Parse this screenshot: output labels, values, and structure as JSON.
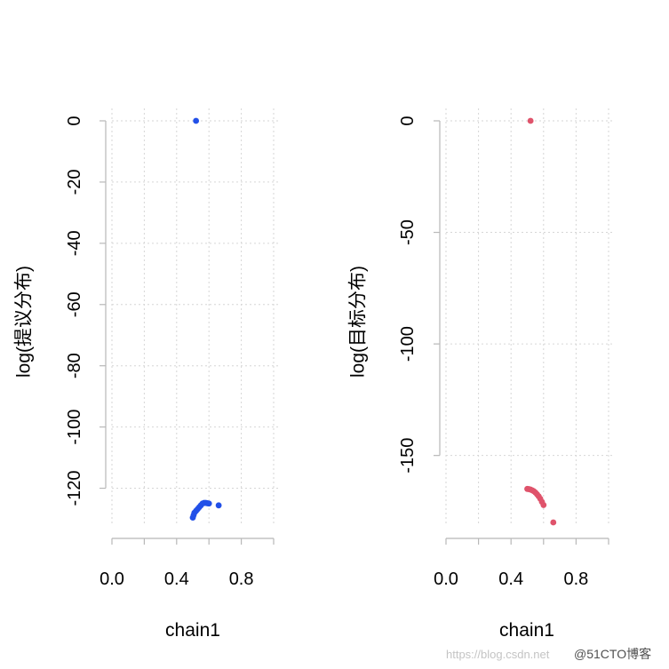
{
  "chart_data": [
    {
      "type": "scatter",
      "xlabel": "chain1",
      "ylabel": "log(提议分布)",
      "xlim": [
        0.0,
        1.0
      ],
      "ylim": [
        -130,
        0
      ],
      "xticks": [
        0.0,
        0.2,
        0.4,
        0.6,
        0.8,
        1.0
      ],
      "xtick_labels": [
        "0.0",
        "0.4",
        "0.8"
      ],
      "xtick_label_values": [
        0.0,
        0.4,
        0.8
      ],
      "yticks": [
        0,
        -20,
        -40,
        -60,
        -80,
        -100,
        -120
      ],
      "ytick_labels": [
        "0",
        "-20",
        "-40",
        "-60",
        "-80",
        "-100",
        "-120"
      ],
      "grid": true,
      "color": "#2250e8",
      "points": [
        {
          "x": 0.52,
          "y": 0
        },
        {
          "x": 0.5,
          "y": -129.6
        },
        {
          "x": 0.505,
          "y": -128.8
        },
        {
          "x": 0.51,
          "y": -128.0
        },
        {
          "x": 0.52,
          "y": -127.4
        },
        {
          "x": 0.53,
          "y": -126.8
        },
        {
          "x": 0.54,
          "y": -126.2
        },
        {
          "x": 0.55,
          "y": -125.6
        },
        {
          "x": 0.56,
          "y": -125.0
        },
        {
          "x": 0.57,
          "y": -124.8
        },
        {
          "x": 0.58,
          "y": -124.8
        },
        {
          "x": 0.59,
          "y": -124.9
        },
        {
          "x": 0.6,
          "y": -125.0
        },
        {
          "x": 0.66,
          "y": -125.6
        }
      ]
    },
    {
      "type": "scatter",
      "xlabel": "chain1",
      "ylabel": "log(目标分布)",
      "xlim": [
        0.0,
        1.0
      ],
      "ylim": [
        -180,
        0
      ],
      "xticks": [
        0.0,
        0.2,
        0.4,
        0.6,
        0.8,
        1.0
      ],
      "xtick_labels": [
        "0.0",
        "0.4",
        "0.8"
      ],
      "xtick_label_values": [
        0.0,
        0.4,
        0.8
      ],
      "yticks": [
        0,
        -50,
        -100,
        -150
      ],
      "ytick_labels": [
        "0",
        "-50",
        "-100",
        "-150"
      ],
      "grid": true,
      "color": "#df536b",
      "points": [
        {
          "x": 0.52,
          "y": 0
        },
        {
          "x": 0.5,
          "y": -165.0
        },
        {
          "x": 0.51,
          "y": -165.1
        },
        {
          "x": 0.52,
          "y": -165.3
        },
        {
          "x": 0.53,
          "y": -165.6
        },
        {
          "x": 0.54,
          "y": -166.0
        },
        {
          "x": 0.55,
          "y": -166.6
        },
        {
          "x": 0.56,
          "y": -167.4
        },
        {
          "x": 0.57,
          "y": -168.3
        },
        {
          "x": 0.58,
          "y": -169.4
        },
        {
          "x": 0.59,
          "y": -170.8
        },
        {
          "x": 0.6,
          "y": -172.2
        },
        {
          "x": 0.66,
          "y": -180.0
        }
      ]
    }
  ],
  "watermark": {
    "url_text": "https://blog.csdn.net",
    "brand_text": "@51CTO博客"
  }
}
